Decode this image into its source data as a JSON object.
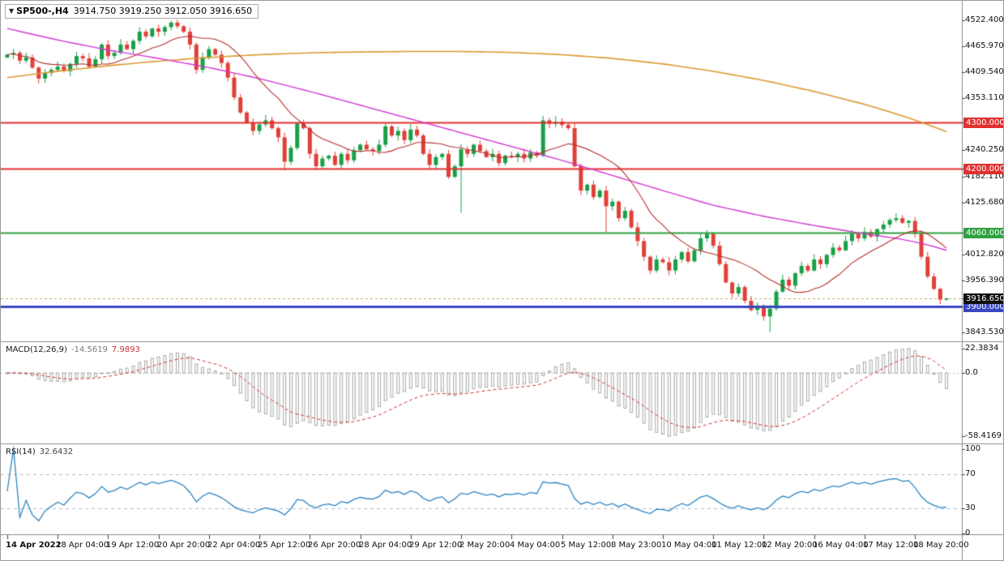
{
  "chart": {
    "title": {
      "arrow": "▼",
      "symbol": "SP500-,H4",
      "ohlc": "3914.750 3919.250 3912.050 3916.650"
    }
  },
  "chart_data": {
    "type": "candlestick",
    "symbol": "SP500-",
    "timeframe": "H4",
    "colors": {
      "up": "#18a048",
      "down": "#e04038",
      "ma_slow": "#dd9933",
      "ma_mid": "#d438d4",
      "ma_fast": "#b83030",
      "macd_hist": "#a8a8a8",
      "macd_signal": "#d03838",
      "rsi": "#2e85c0",
      "rsi_levels": "#b4bcd4",
      "axis_text": "#111111"
    },
    "first_open": 4442,
    "closes": [
      4448,
      4452,
      4435,
      4442,
      4420,
      4396,
      4408,
      4415,
      4422,
      4412,
      4428,
      4445,
      4440,
      4422,
      4438,
      4470,
      4445,
      4452,
      4470,
      4460,
      4478,
      4498,
      4488,
      4505,
      4498,
      4508,
      4518,
      4510,
      4498,
      4470,
      4415,
      4442,
      4460,
      4448,
      4430,
      4398,
      4355,
      4322,
      4300,
      4282,
      4296,
      4305,
      4288,
      4268,
      4215,
      4245,
      4298,
      4288,
      4232,
      4205,
      4222,
      4228,
      4208,
      4232,
      4218,
      4240,
      4252,
      4242,
      4238,
      4252,
      4292,
      4272,
      4282,
      4262,
      4285,
      4272,
      4232,
      4208,
      4225,
      4232,
      4182,
      4205,
      4242,
      4232,
      4252,
      4238,
      4225,
      4232,
      4212,
      4228,
      4225,
      4232,
      4222,
      4235,
      4228,
      4305,
      4298,
      4302,
      4295,
      4288,
      4205,
      4152,
      4165,
      4138,
      4152,
      4118,
      4128,
      4092,
      4108,
      4072,
      4042,
      4008,
      3978,
      4002,
      3996,
      3978,
      4002,
      4018,
      3998,
      4022,
      4048,
      4058,
      4032,
      3992,
      3952,
      3928,
      3942,
      3912,
      3892,
      3902,
      3878,
      3895,
      3932,
      3958,
      3945,
      3972,
      3988,
      3978,
      4002,
      3992,
      4012,
      4028,
      4022,
      4042,
      4058,
      4048,
      4062,
      4052,
      4068,
      4078,
      4088,
      4092,
      4082,
      4086,
      4058,
      4008,
      3965,
      3938,
      3914.75,
      3916.65
    ],
    "current_candle": {
      "open": 3914.75,
      "high": 3919.25,
      "low": 3912.05,
      "close": 3916.65
    },
    "wick_overrides": {
      "26": {
        "high": 4522
      },
      "44": {
        "low": 4196
      },
      "72": {
        "low": 4104
      },
      "95": {
        "low": 4062
      },
      "121": {
        "low": 3844
      },
      "149": {
        "high": 3919.25,
        "low": 3912.05
      }
    },
    "price_axis": {
      "max": 4530,
      "min": 3838,
      "ticks": [
        {
          "v": 4522.4,
          "t": "4522.400"
        },
        {
          "v": 4465.97,
          "t": "4465.970"
        },
        {
          "v": 4409.54,
          "t": "4409.540"
        },
        {
          "v": 4353.11,
          "t": "4353.110"
        },
        {
          "v": 4240.25,
          "t": "4240.250"
        },
        {
          "v": 4182.11,
          "t": "4182.110"
        },
        {
          "v": 4125.68,
          "t": "4125.680"
        },
        {
          "v": 4012.82,
          "t": "4012.820"
        },
        {
          "v": 3956.39,
          "t": "3956.390"
        },
        {
          "v": 3843.53,
          "t": "3843.530"
        }
      ]
    },
    "hlines": [
      {
        "price": 4300,
        "label": "4300.000",
        "color": "#e03030",
        "width": 2
      },
      {
        "price": 4200,
        "label": "4200.000",
        "color": "#e03030",
        "width": 2
      },
      {
        "price": 4060,
        "label": "4060.000",
        "color": "#30a040",
        "width": 2
      },
      {
        "price": 3900,
        "label": "3900.000",
        "color": "#3848c0",
        "width": 3
      }
    ],
    "current_price": {
      "price": 3916.65,
      "label": "3916.650",
      "line_color": "#c8a860",
      "badge_color": "#101010"
    },
    "ma_slow_points": [
      [
        0,
        4398
      ],
      [
        8,
        4412
      ],
      [
        16,
        4424
      ],
      [
        24,
        4434
      ],
      [
        32,
        4442
      ],
      [
        40,
        4448
      ],
      [
        48,
        4452
      ],
      [
        56,
        4454
      ],
      [
        64,
        4455
      ],
      [
        72,
        4455
      ],
      [
        80,
        4453
      ],
      [
        88,
        4448
      ],
      [
        96,
        4440
      ],
      [
        104,
        4428
      ],
      [
        112,
        4412
      ],
      [
        120,
        4392
      ],
      [
        128,
        4368
      ],
      [
        136,
        4340
      ],
      [
        142,
        4315
      ],
      [
        146,
        4296
      ],
      [
        149,
        4280
      ]
    ],
    "ma_mid_points": [
      [
        0,
        4505
      ],
      [
        8,
        4480
      ],
      [
        16,
        4458
      ],
      [
        24,
        4440
      ],
      [
        32,
        4420
      ],
      [
        40,
        4396
      ],
      [
        48,
        4368
      ],
      [
        56,
        4338
      ],
      [
        64,
        4308
      ],
      [
        72,
        4278
      ],
      [
        80,
        4248
      ],
      [
        88,
        4218
      ],
      [
        96,
        4185
      ],
      [
        104,
        4152
      ],
      [
        112,
        4120
      ],
      [
        120,
        4096
      ],
      [
        128,
        4076
      ],
      [
        136,
        4058
      ],
      [
        142,
        4046
      ],
      [
        146,
        4034
      ],
      [
        149,
        4022
      ]
    ],
    "ma_fast_period": 13,
    "macd": {
      "label": "MACD(12,26,9)",
      "main_value": "-14.5619",
      "signal_value": "7.9893",
      "fast": 12,
      "slow": 26,
      "signal": 9,
      "axis": {
        "max": 22.3834,
        "min": -58.4169,
        "ticks": [
          {
            "v": 22.3834,
            "t": "22.3834"
          },
          {
            "v": 0,
            "t": "0.0"
          },
          {
            "v": -58.4169,
            "t": "-58.4169"
          }
        ]
      }
    },
    "rsi": {
      "label": "RSI(14)",
      "value": "32.6432",
      "period": 14,
      "levels": [
        70,
        30
      ],
      "ticks": [
        {
          "v": 100,
          "t": "100"
        },
        {
          "v": 70,
          "t": "70"
        },
        {
          "v": 30,
          "t": "30"
        },
        {
          "v": 0,
          "t": "0"
        }
      ]
    },
    "time_axis": {
      "bars_per_label": 8,
      "labels": [
        "14 Apr 2022",
        "18 Apr 04:00",
        "19 Apr 12:00",
        "20 Apr 20:00",
        "22 Apr 04:00",
        "25 Apr 12:00",
        "26 Apr 20:00",
        "28 Apr 04:00",
        "29 Apr 12:00",
        "2 May 20:00",
        "4 May 04:00",
        "5 May 12:00",
        "8 May 23:00",
        "10 May 04:00",
        "11 May 12:00",
        "12 May 20:00",
        "16 May 04:00",
        "17 May 12:00",
        "18 May 20:00"
      ]
    }
  }
}
